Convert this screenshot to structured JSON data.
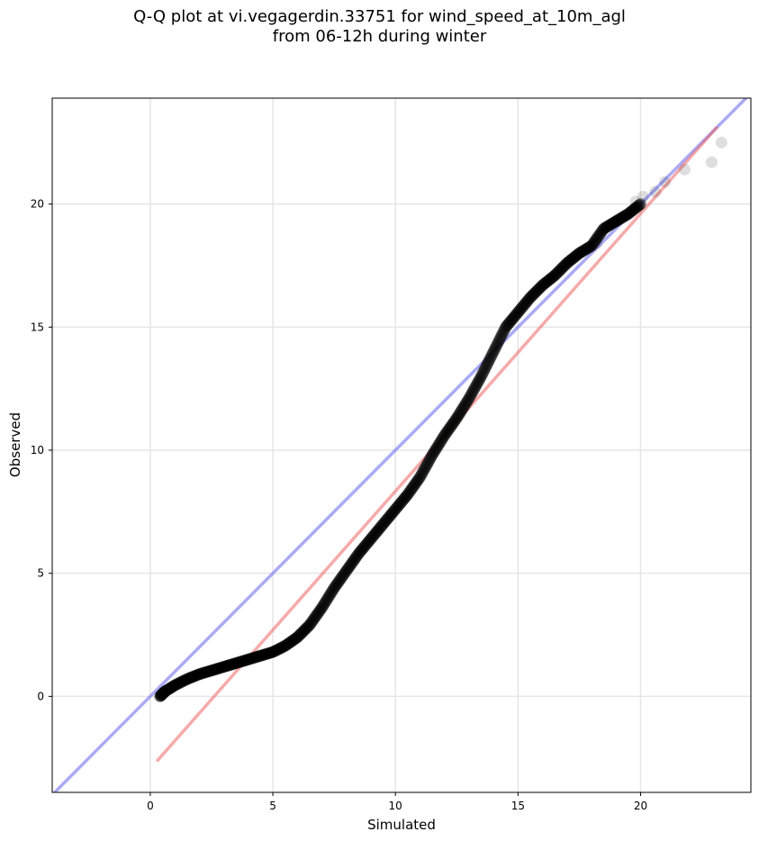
{
  "title_line1": "Q-Q plot at vi.vegagerdin.33751 for wind_speed_at_10m_agl",
  "title_line2": "from 06-12h during winter",
  "chart_data": {
    "type": "scatter",
    "xlabel": "Simulated",
    "ylabel": "Observed",
    "xlim": [
      -4.0,
      24.5
    ],
    "ylim": [
      -3.9,
      24.3
    ],
    "xticks": [
      0,
      5,
      10,
      15,
      20
    ],
    "yticks": [
      0,
      5,
      10,
      15,
      20
    ],
    "grid": true,
    "point_color": "#000000",
    "quantile_curve": [
      [
        0.4,
        0.0
      ],
      [
        0.6,
        0.2
      ],
      [
        1.0,
        0.45
      ],
      [
        1.5,
        0.7
      ],
      [
        2.0,
        0.9
      ],
      [
        2.5,
        1.05
      ],
      [
        3.0,
        1.2
      ],
      [
        3.5,
        1.35
      ],
      [
        4.0,
        1.5
      ],
      [
        4.5,
        1.65
      ],
      [
        5.0,
        1.8
      ],
      [
        5.5,
        2.05
      ],
      [
        6.0,
        2.4
      ],
      [
        6.5,
        2.9
      ],
      [
        7.0,
        3.6
      ],
      [
        7.5,
        4.4
      ],
      [
        8.0,
        5.1
      ],
      [
        8.5,
        5.8
      ],
      [
        9.0,
        6.4
      ],
      [
        9.5,
        7.0
      ],
      [
        10.0,
        7.6
      ],
      [
        10.5,
        8.2
      ],
      [
        11.0,
        8.9
      ],
      [
        11.5,
        9.8
      ],
      [
        12.0,
        10.6
      ],
      [
        12.5,
        11.3
      ],
      [
        13.0,
        12.1
      ],
      [
        13.5,
        13.0
      ],
      [
        14.0,
        14.0
      ],
      [
        14.5,
        15.0
      ],
      [
        15.0,
        15.6
      ],
      [
        15.5,
        16.2
      ],
      [
        16.0,
        16.7
      ],
      [
        16.5,
        17.1
      ],
      [
        17.0,
        17.6
      ],
      [
        17.5,
        18.0
      ],
      [
        18.0,
        18.3
      ],
      [
        18.5,
        19.0
      ],
      [
        19.0,
        19.3
      ],
      [
        19.5,
        19.6
      ],
      [
        20.0,
        20.0
      ]
    ],
    "tail_points": [
      [
        18.2,
        18.4
      ],
      [
        19.8,
        20.1
      ],
      [
        20.1,
        20.3
      ],
      [
        20.6,
        20.5
      ],
      [
        21.0,
        20.9
      ],
      [
        21.8,
        21.4
      ],
      [
        22.9,
        21.7
      ],
      [
        23.3,
        22.5
      ]
    ],
    "series": [
      {
        "name": "",
        "type": "line",
        "color": "#5555ee",
        "x": [
          -4.0,
          24.5
        ],
        "y": [
          -4.0,
          24.5
        ]
      },
      {
        "name": "",
        "type": "line",
        "color": "#ee5555",
        "x": [
          0.3,
          23.1
        ],
        "y": [
          -2.6,
          23.1
        ]
      }
    ]
  }
}
